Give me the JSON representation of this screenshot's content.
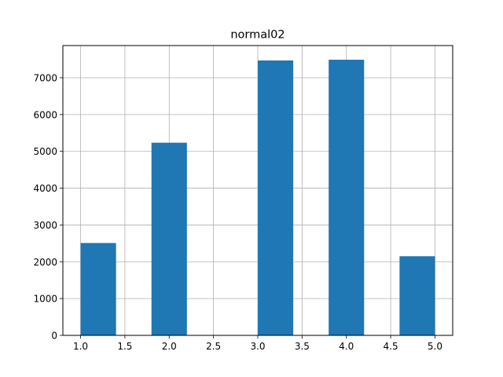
{
  "chart_data": {
    "type": "bar",
    "title": "normal02",
    "xlabel": "",
    "ylabel": "",
    "xlim": [
      0.8,
      5.2
    ],
    "ylim": [
      0,
      7875
    ],
    "grid": true,
    "x_ticks": [
      1.0,
      1.5,
      2.0,
      2.5,
      3.0,
      3.5,
      4.0,
      4.5,
      5.0
    ],
    "x_tick_labels": [
      "1.0",
      "1.5",
      "2.0",
      "2.5",
      "3.0",
      "3.5",
      "4.0",
      "4.5",
      "5.0"
    ],
    "y_ticks": [
      0,
      1000,
      2000,
      3000,
      4000,
      5000,
      6000,
      7000
    ],
    "y_tick_labels": [
      "0",
      "1000",
      "2000",
      "3000",
      "4000",
      "5000",
      "6000",
      "7000"
    ],
    "bins": [
      {
        "x0": 1.0,
        "x1": 1.4,
        "value": 2510
      },
      {
        "x0": 1.4,
        "x1": 1.8,
        "value": 0
      },
      {
        "x0": 1.8,
        "x1": 2.2,
        "value": 5235
      },
      {
        "x0": 2.2,
        "x1": 2.6,
        "value": 0
      },
      {
        "x0": 2.6,
        "x1": 3.0,
        "value": 0
      },
      {
        "x0": 3.0,
        "x1": 3.4,
        "value": 7470
      },
      {
        "x0": 3.4,
        "x1": 3.8,
        "value": 0
      },
      {
        "x0": 3.8,
        "x1": 4.2,
        "value": 7490
      },
      {
        "x0": 4.2,
        "x1": 4.6,
        "value": 0
      },
      {
        "x0": 4.6,
        "x1": 5.0,
        "value": 2150
      }
    ],
    "bar_color": "#1f77b4",
    "grid_color": "#b0b0b0"
  }
}
